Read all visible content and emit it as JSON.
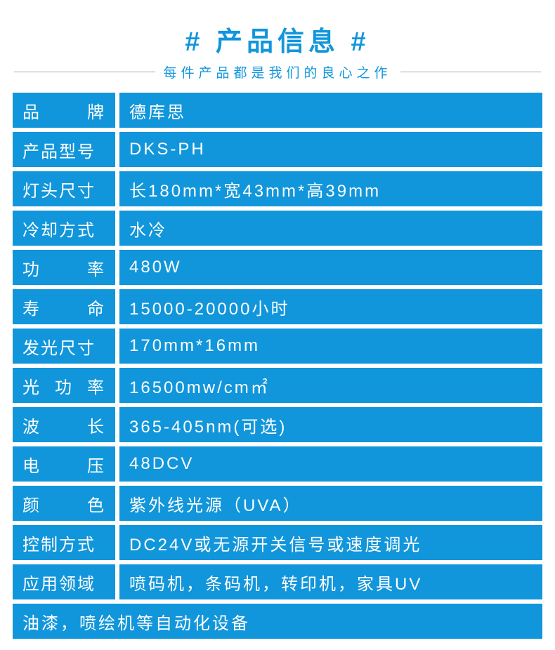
{
  "header": {
    "title": "# 产品信息 #",
    "subtitle": "每件产品都是我们的良心之作"
  },
  "colors": {
    "accent": "#1196db",
    "cell_bg": "#1196db",
    "subtitle_text": "#1196db",
    "line": "#a8a8a8",
    "row_text": "#ffffff"
  },
  "rows": [
    {
      "label_chars": [
        "品",
        "牌"
      ],
      "value": "德库思"
    },
    {
      "label": "产品型号",
      "value": "DKS-PH"
    },
    {
      "label": "灯头尺寸",
      "value": "长180mm*宽43mm*高39mm"
    },
    {
      "label": "冷却方式",
      "value": "水冷"
    },
    {
      "label_chars": [
        "功",
        "率"
      ],
      "value": "480W"
    },
    {
      "label_chars": [
        "寿",
        "命"
      ],
      "value": "15000-20000小时"
    },
    {
      "label": "发光尺寸",
      "value": "170mm*16mm"
    },
    {
      "label_chars": [
        "光",
        "功",
        "率"
      ],
      "value": "16500mw/cm㎡"
    },
    {
      "label_chars": [
        "波",
        "长"
      ],
      "value": "365-405nm(可选)"
    },
    {
      "label_chars": [
        "电",
        "压"
      ],
      "value": "48DCV"
    },
    {
      "label_chars": [
        "颜",
        "色"
      ],
      "value": "紫外线光源（UVA）"
    },
    {
      "label": "控制方式",
      "value": "DC24V或无源开关信号或速度调光"
    },
    {
      "label": "应用领域",
      "value": "喷码机，条码机，转印机，家具UV"
    }
  ],
  "footer_row": "油漆，喷绘机等自动化设备"
}
